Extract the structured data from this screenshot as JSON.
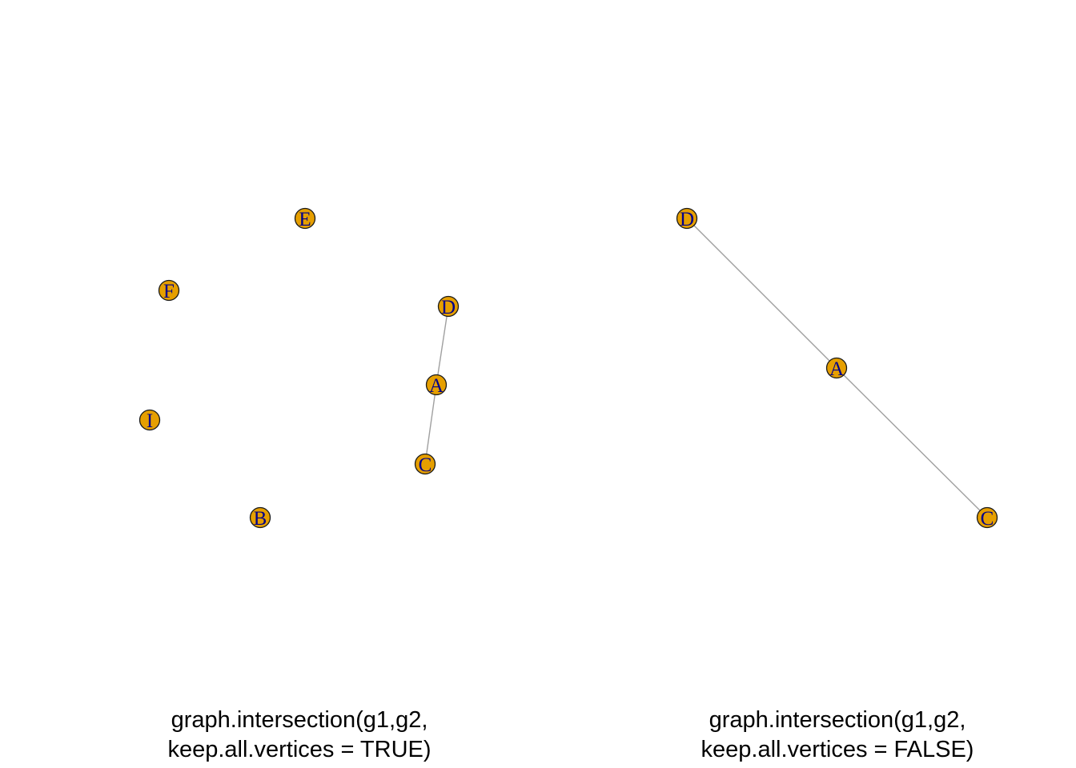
{
  "colors": {
    "vertex_fill": "#e69f00",
    "vertex_stroke": "#1a1a1a",
    "vertex_label": "#00008b",
    "edge": "#a0a0a0"
  },
  "panels": [
    {
      "id": "left",
      "caption_line1": "graph.intersection(g1,g2,",
      "caption_line2": "keep.all.vertices = TRUE)",
      "vertices": [
        "E",
        "F",
        "D",
        "A",
        "I",
        "C",
        "B"
      ],
      "edges": [
        [
          "D",
          "A"
        ],
        [
          "A",
          "C"
        ]
      ]
    },
    {
      "id": "right",
      "caption_line1": "graph.intersection(g1,g2,",
      "caption_line2": "keep.all.vertices = FALSE)",
      "vertices": [
        "D",
        "A",
        "C"
      ],
      "edges": [
        [
          "D",
          "A"
        ],
        [
          "A",
          "C"
        ]
      ]
    }
  ]
}
